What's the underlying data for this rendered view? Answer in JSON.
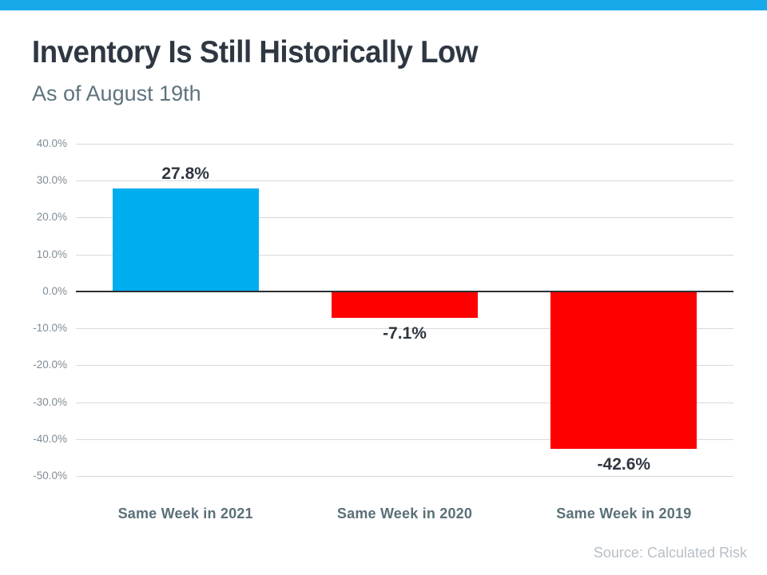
{
  "header": {
    "title": "Inventory Is Still Historically Low",
    "subtitle": "As of August 19th",
    "accent_bar_color": "#18a9ea"
  },
  "chart_data": {
    "type": "bar",
    "title": "Inventory Is Still Historically Low",
    "subtitle": "As of August 19th",
    "categories": [
      "Same Week in 2021",
      "Same Week in 2020",
      "Same Week in 2019"
    ],
    "values": [
      27.8,
      -7.1,
      -42.6
    ],
    "data_labels": [
      "27.8%",
      "-7.1%",
      "-42.6%"
    ],
    "bar_colors": [
      "#00aeef",
      "#fe0000",
      "#fe0000"
    ],
    "xlabel": "",
    "ylabel": "",
    "ylim": [
      -50,
      40
    ],
    "ytick_step": 10,
    "ytick_labels": [
      "40.0%",
      "30.0%",
      "20.0%",
      "10.0%",
      "0.0%",
      "-10.0%",
      "-20.0%",
      "-30.0%",
      "-40.0%",
      "-50.0%"
    ],
    "grid": true,
    "legend": false
  },
  "footer": {
    "source": "Source: Calculated Risk"
  }
}
